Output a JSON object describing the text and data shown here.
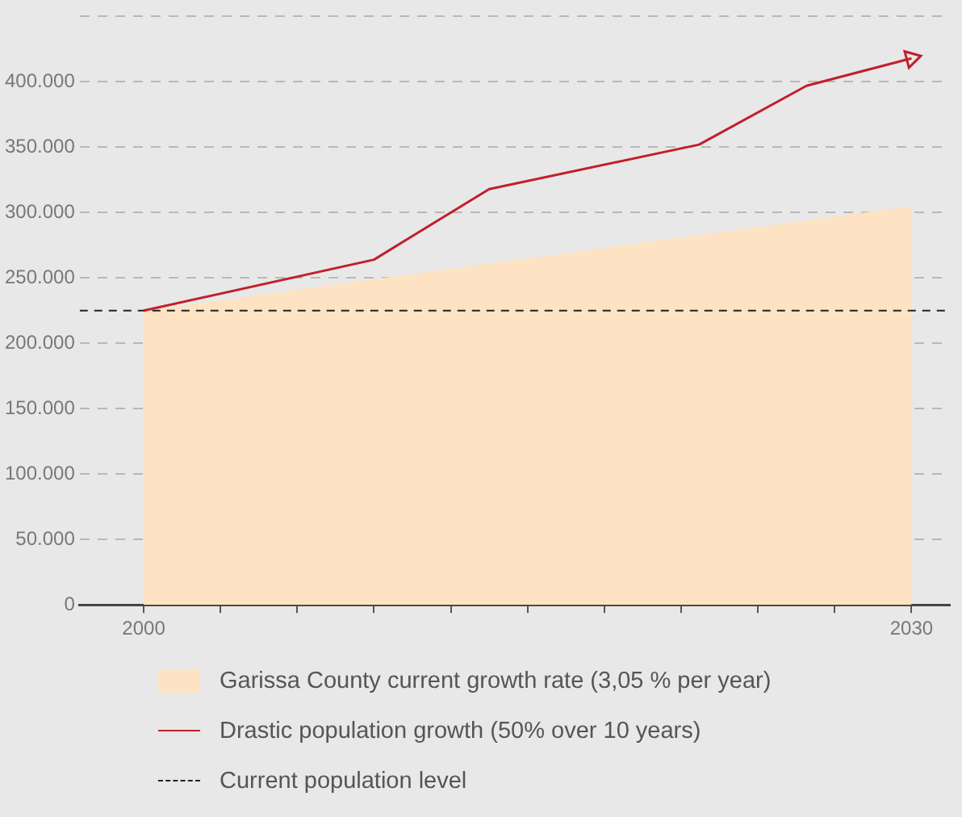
{
  "chart_data": {
    "type": "area",
    "x": [
      2000,
      2030
    ],
    "xlim": [
      1997.5,
      2031.5
    ],
    "xticks": [
      2000,
      {
        "value": 2003,
        "label": null
      },
      {
        "value": 2006,
        "label": null
      },
      {
        "value": 2009,
        "label": null
      },
      {
        "value": 2012,
        "label": null
      },
      {
        "value": 2015,
        "label": null
      },
      {
        "value": 2018,
        "label": null
      },
      {
        "value": 2021,
        "label": null
      },
      {
        "value": 2024,
        "label": null
      },
      {
        "value": 2027,
        "label": null
      },
      2030
    ],
    "ylim": [
      0,
      450000
    ],
    "yticks": [
      {
        "value": 0,
        "label": "0"
      },
      {
        "value": 50000,
        "label": "50.000"
      },
      {
        "value": 100000,
        "label": "100.000"
      },
      {
        "value": 150000,
        "label": "150.000"
      },
      {
        "value": 200000,
        "label": "200.000"
      },
      {
        "value": 250000,
        "label": "250.000"
      },
      {
        "value": 300000,
        "label": "300.000"
      },
      {
        "value": 350000,
        "label": "350.000"
      },
      {
        "value": 400000,
        "label": "400.000"
      },
      {
        "value": 450000,
        "label": null
      }
    ],
    "grid": "y",
    "legend": "bottom",
    "marker": "none",
    "series": [
      {
        "name": "Garissa County current growth rate (3,05 % per year)",
        "color": "#fde3c4",
        "values": [
          225000,
          305000
        ]
      },
      {
        "name": "Drastic population growth (50% over 10 years)",
        "type": "line",
        "color": "#c0202c",
        "x": [
          2000,
          2009,
          2013.5,
          2021.7,
          2025.9,
          2030
        ],
        "values": [
          225000,
          264000,
          318000,
          352000,
          397000,
          418000
        ]
      }
    ],
    "ref_lines": [
      {
        "axis": "y",
        "value": 225000,
        "label": "Current population level",
        "color": "#222222",
        "line_style": "dashed"
      }
    ]
  }
}
